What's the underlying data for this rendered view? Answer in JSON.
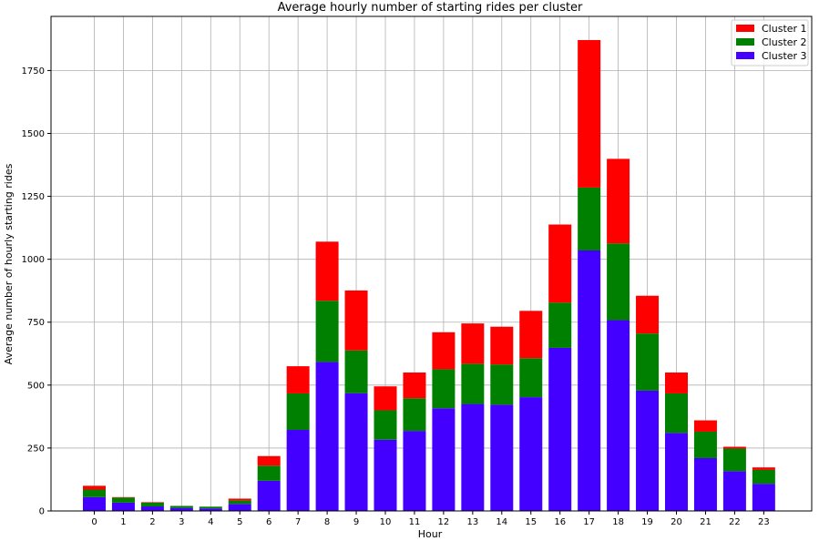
{
  "chart_data": {
    "type": "bar",
    "stacked": true,
    "title": "Average hourly number of starting rides per cluster",
    "xlabel": "Hour",
    "ylabel": "Average number of hourly starting rides",
    "categories": [
      "0",
      "1",
      "2",
      "3",
      "4",
      "5",
      "6",
      "7",
      "8",
      "9",
      "10",
      "11",
      "12",
      "13",
      "14",
      "15",
      "16",
      "17",
      "18",
      "19",
      "20",
      "21",
      "22",
      "23"
    ],
    "ylim": [
      0,
      1965
    ],
    "yticks": [
      0,
      250,
      500,
      750,
      1000,
      1250,
      1500,
      1750
    ],
    "grid": true,
    "legend_position": "top-right",
    "series": [
      {
        "name": "Cluster 3",
        "color": "#4400ff",
        "values": [
          55,
          33,
          18,
          12,
          10,
          28,
          120,
          322,
          592,
          468,
          283,
          318,
          408,
          425,
          422,
          452,
          648,
          1035,
          758,
          478,
          310,
          210,
          158,
          108
        ]
      },
      {
        "name": "Cluster 2",
        "color": "#008000",
        "values": [
          30,
          20,
          15,
          8,
          7,
          14,
          60,
          145,
          243,
          170,
          117,
          130,
          155,
          160,
          160,
          155,
          180,
          250,
          305,
          227,
          157,
          105,
          90,
          55
        ]
      },
      {
        "name": "Cluster 1",
        "color": "#ff0000",
        "values": [
          15,
          2,
          2,
          0,
          0,
          7,
          38,
          108,
          235,
          238,
          95,
          102,
          147,
          160,
          150,
          188,
          310,
          586,
          336,
          150,
          83,
          45,
          7,
          10
        ]
      }
    ],
    "legend": [
      "Cluster 1",
      "Cluster 2",
      "Cluster 3"
    ]
  }
}
